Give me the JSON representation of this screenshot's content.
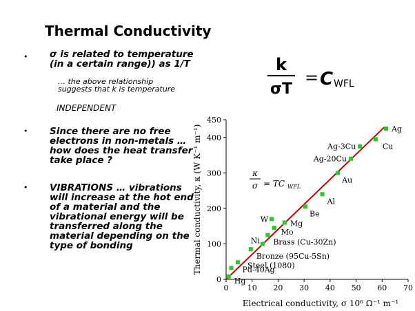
{
  "slide": {
    "title": "Thermal Conductivity",
    "bullets": [
      {
        "text": "σ is related to temperature (in a certain range)) as 1/T"
      },
      {
        "text": "Since there are no free electrons in non-metals … how does the heat transfer take place ?"
      },
      {
        "text": "VIBRATIONS … vibrations will increase at the hot end of a material and the vibrational energy will be transferred along the material depending on the type of bonding"
      }
    ],
    "sub_note": "… the above relationship suggests that k is temperature",
    "independent": "INDEPENDENT",
    "bullet_symbol": "•"
  },
  "formula": {
    "numerator": "k",
    "denominator": "σT",
    "equals": "=",
    "constant": "C",
    "subscript": "WFL"
  },
  "chart_data": {
    "type": "scatter",
    "xlabel": "Electrical conductivity, σ  10⁶ Ω⁻¹ m⁻¹",
    "ylabel": "Thermal conductivity, κ (W K⁻¹ m⁻¹)",
    "xlim": [
      0,
      70
    ],
    "ylim": [
      0,
      450
    ],
    "x_ticks": [
      0,
      10,
      20,
      30,
      40,
      50,
      60,
      70
    ],
    "y_ticks": [
      0,
      100,
      200,
      300,
      400,
      450
    ],
    "annotation": {
      "lhs_num": "κ",
      "lhs_den": "σ",
      "rhs": "= TC",
      "rhs_sub": "WFL"
    },
    "fit_line": {
      "x": [
        0,
        61
      ],
      "y": [
        0,
        430
      ],
      "color": "#cc0000"
    },
    "points": [
      {
        "label": "Hg",
        "x": 1.0,
        "y": 8
      },
      {
        "label": "Pd-40Ag",
        "x": 2.0,
        "y": 32
      },
      {
        "label": "Steel (1080)",
        "x": 4.5,
        "y": 48
      },
      {
        "label": "Bronze (95Cu-5Sn)",
        "x": 9.5,
        "y": 85
      },
      {
        "label": "Ni",
        "x": 14.0,
        "y": 100
      },
      {
        "label": "Brass (Cu-30Zn)",
        "x": 16.0,
        "y": 125
      },
      {
        "label": "Mo",
        "x": 18.5,
        "y": 145
      },
      {
        "label": "W",
        "x": 17.5,
        "y": 170
      },
      {
        "label": "Mg",
        "x": 22.5,
        "y": 160
      },
      {
        "label": "Be",
        "x": 30.5,
        "y": 205
      },
      {
        "label": "Al",
        "x": 37.0,
        "y": 240
      },
      {
        "label": "Au",
        "x": 43.0,
        "y": 300
      },
      {
        "label": "Ag-20Cu",
        "x": 48.0,
        "y": 340
      },
      {
        "label": "Ag-3Cu",
        "x": 51.5,
        "y": 375
      },
      {
        "label": "Cu",
        "x": 57.5,
        "y": 395
      },
      {
        "label": "Ag",
        "x": 61.5,
        "y": 425
      }
    ],
    "point_color": "#22cc22"
  }
}
